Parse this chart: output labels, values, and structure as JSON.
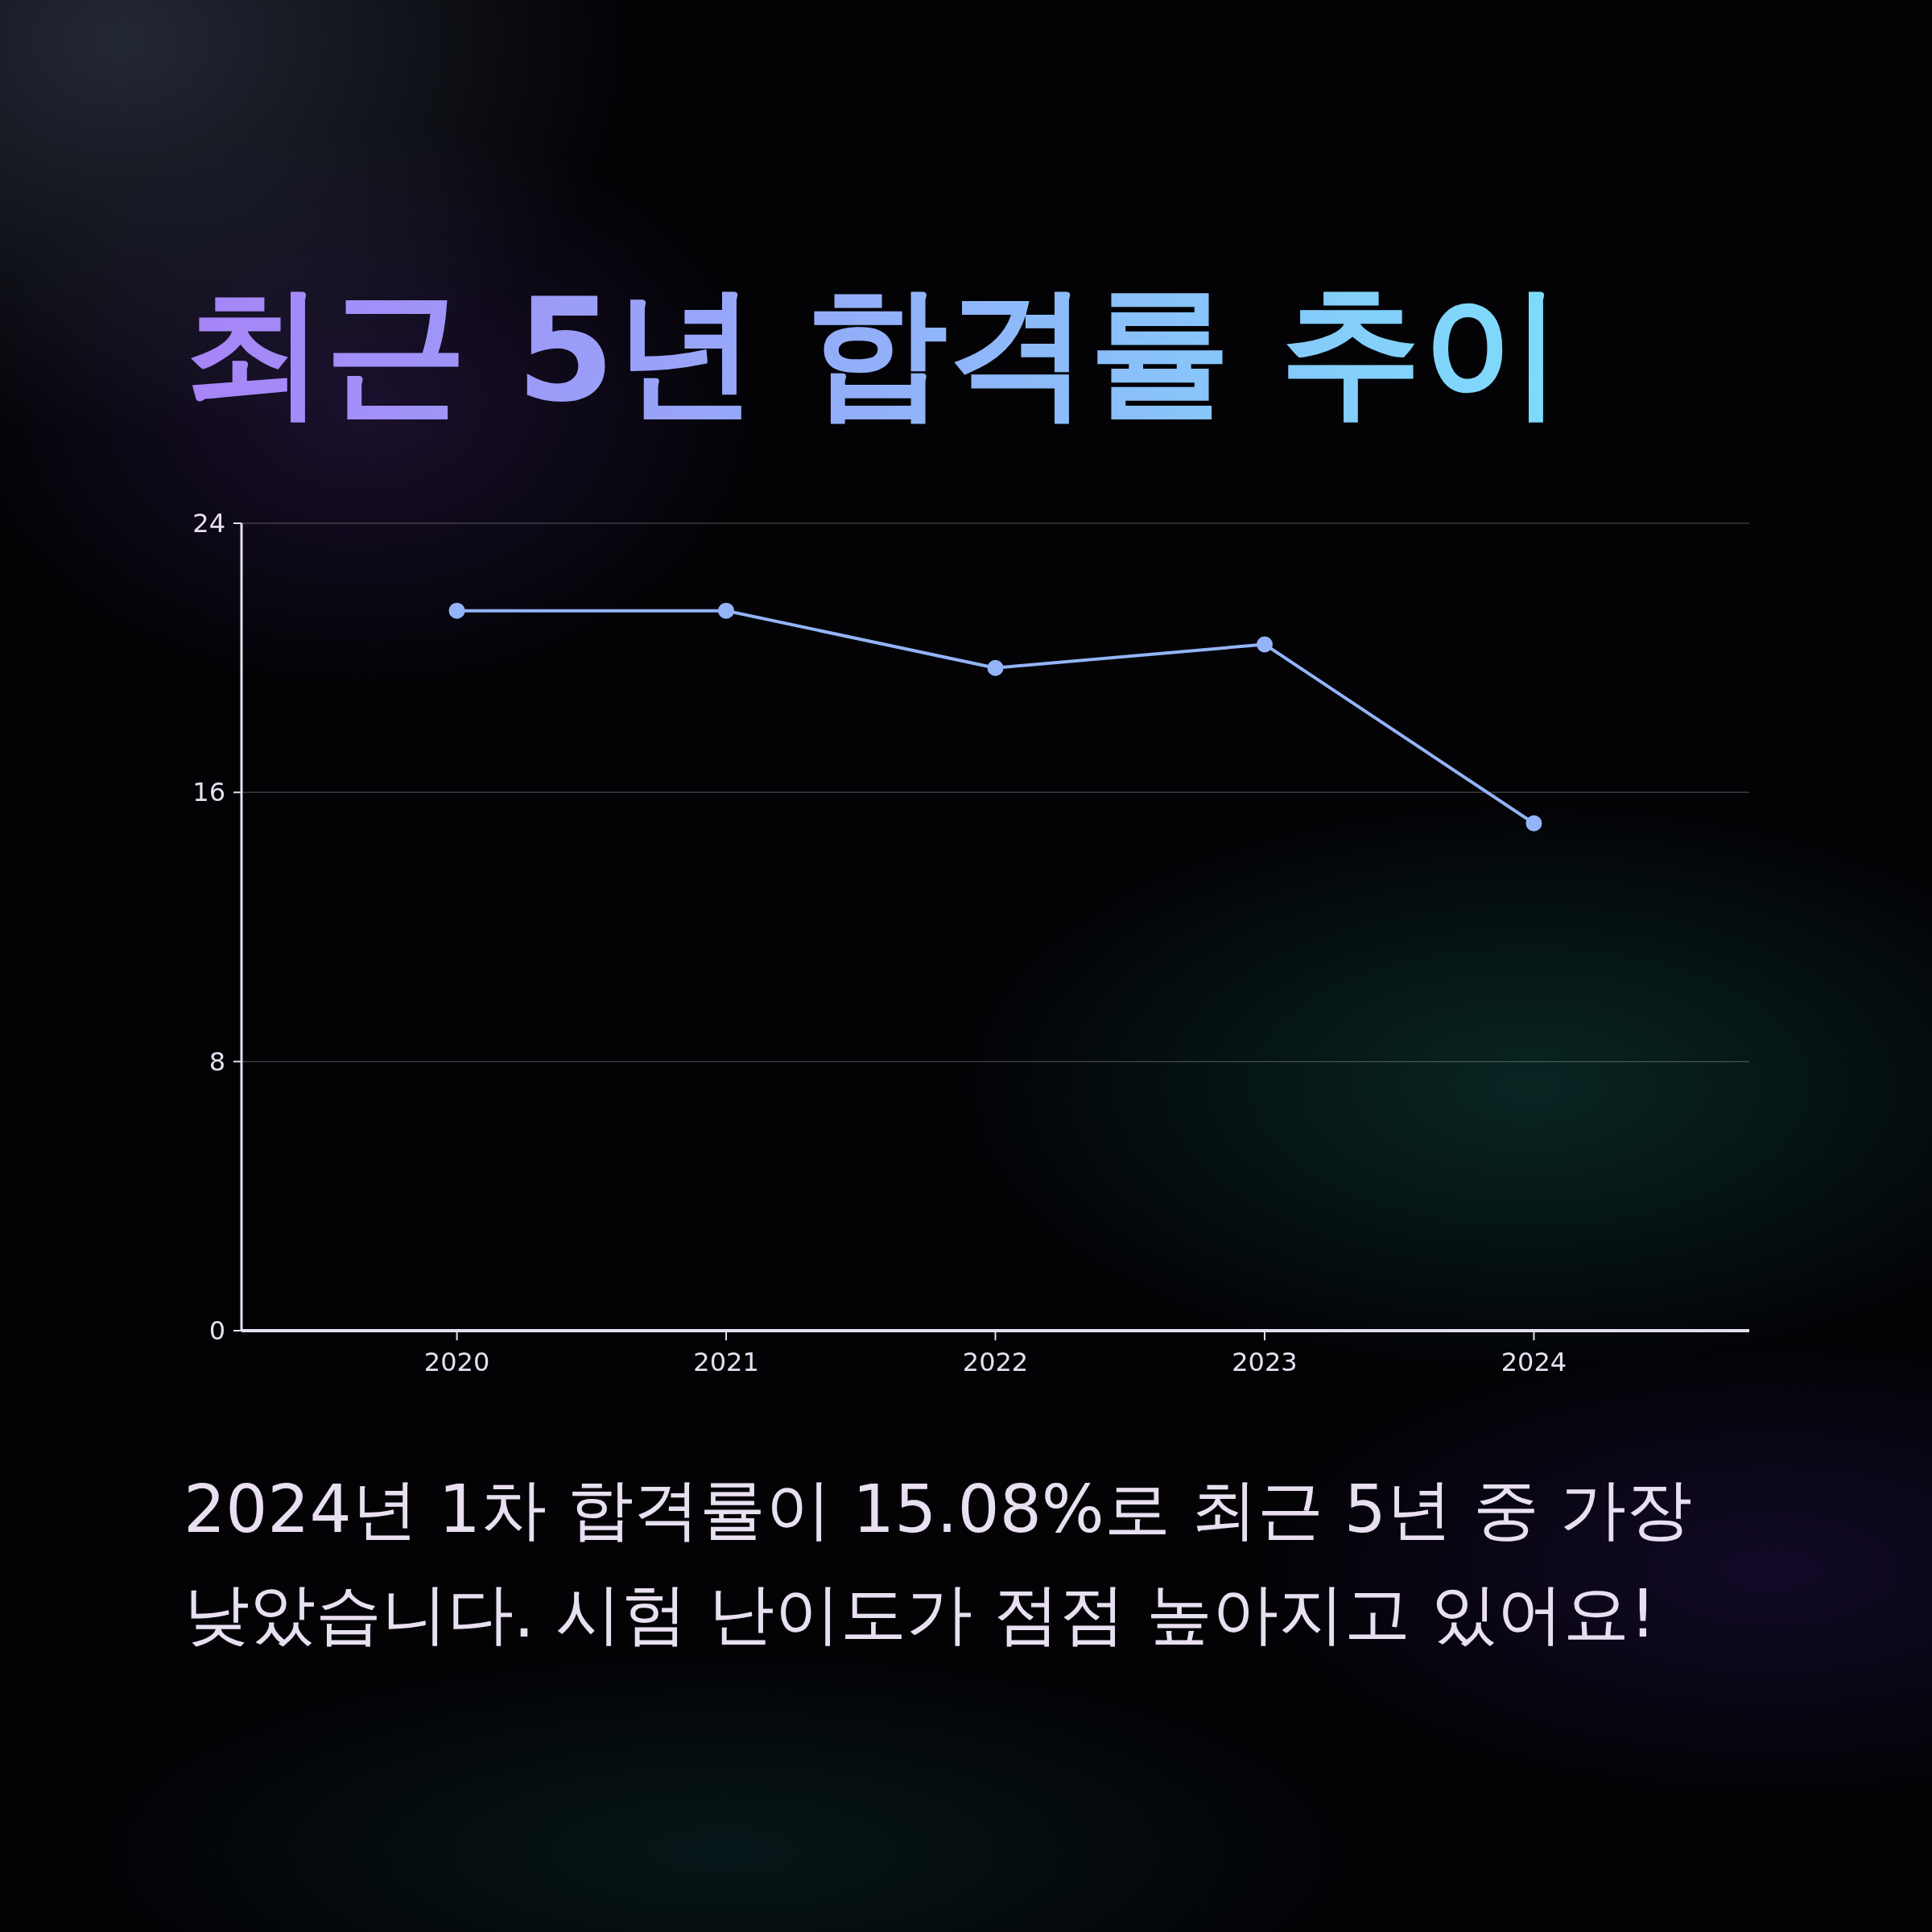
{
  "chart_data": {
    "type": "line",
    "title": "최근 5년 합격률 추이",
    "categories": [
      "2020",
      "2021",
      "2022",
      "2023",
      "2024"
    ],
    "series": [
      {
        "color": "#93b4f8",
        "values": [
          21.4,
          21.4,
          19.7,
          20.4,
          15.08
        ]
      }
    ],
    "ylim": [
      0,
      24
    ],
    "yticks": [
      0,
      8,
      16,
      24
    ],
    "grid": "y",
    "marker": "circle",
    "annotations": [
      "2024년 1차 합격률이 15.08%로 최근 5년 중 가장 낮았습니다. 시험 난이도가 점점 높아지고 있어요!"
    ]
  }
}
